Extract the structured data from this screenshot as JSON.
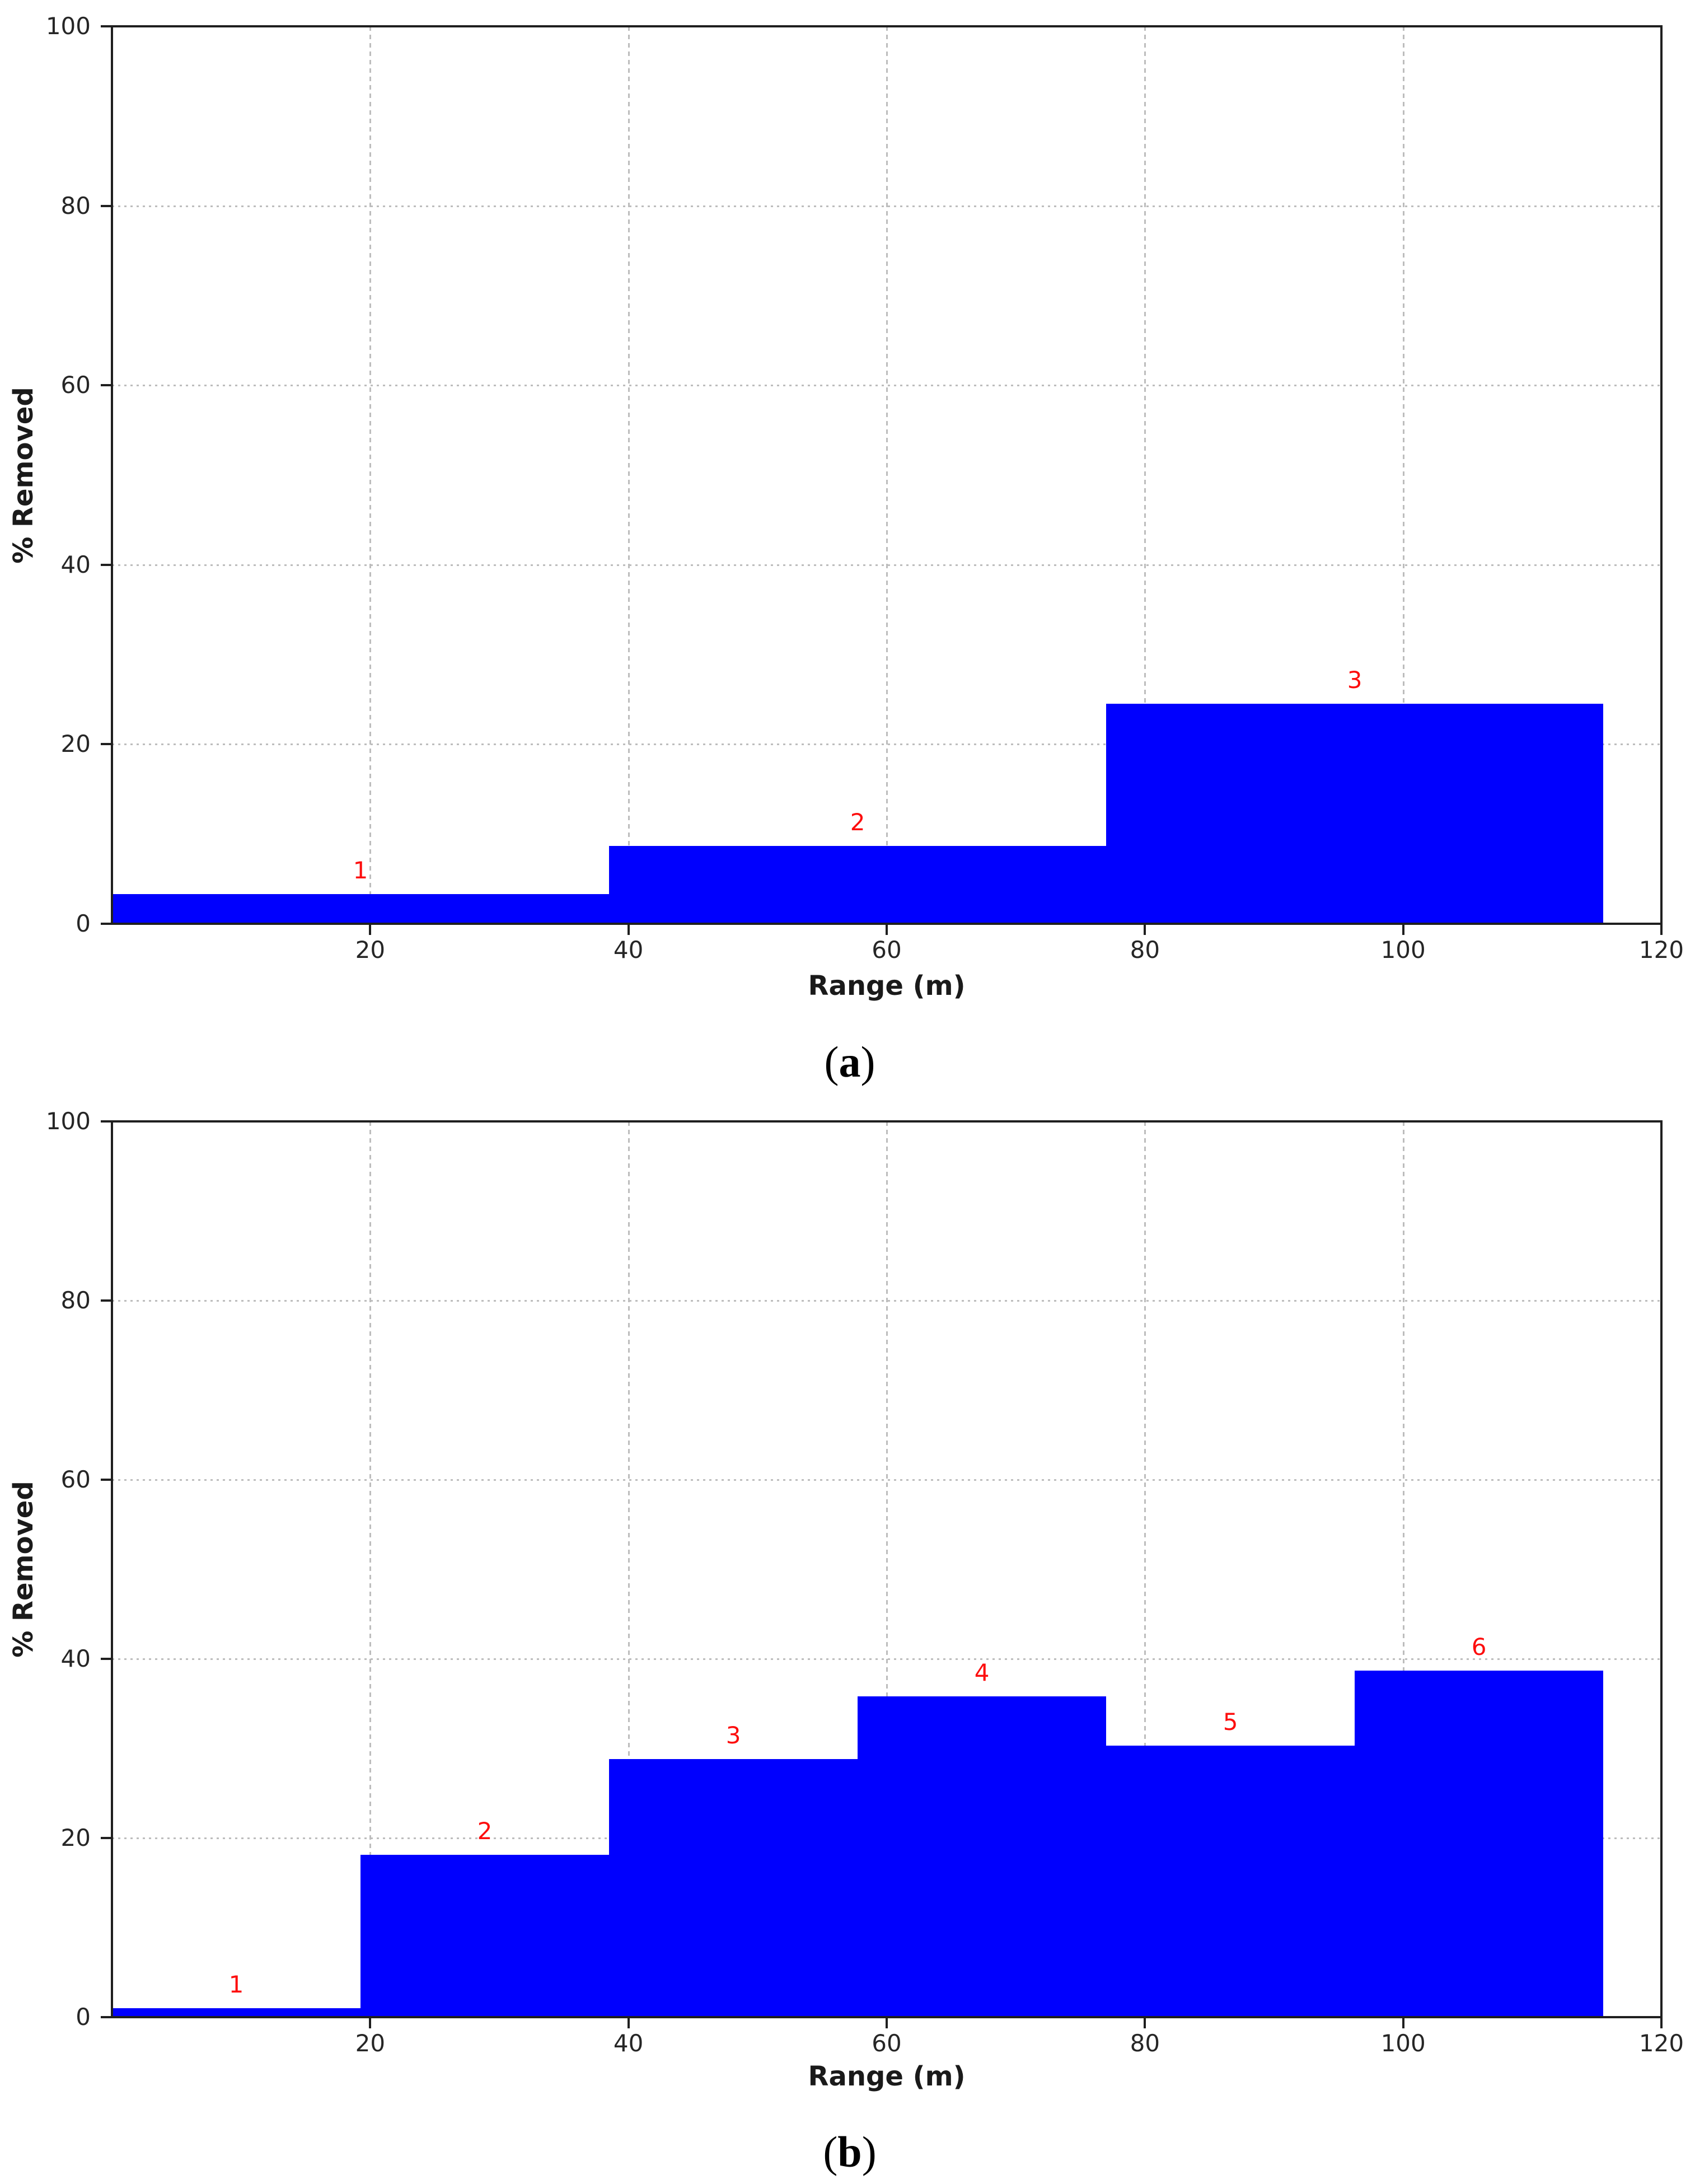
{
  "figure": {
    "background": "#ffffff",
    "axis_color": "#1f1f1f",
    "grid_color": "#bdbdbd",
    "tick_label_color": "#262626"
  },
  "chart_data": [
    {
      "type": "bar",
      "panel": "a",
      "caption": {
        "open": "(",
        "letter": "a",
        "close": ")"
      },
      "title": "",
      "xlabel": "Range (m)",
      "ylabel": "% Removed",
      "xlim": [
        0,
        120
      ],
      "ylim": [
        0,
        100
      ],
      "xticks": [
        20,
        40,
        60,
        80,
        100,
        120
      ],
      "yticks": [
        0,
        20,
        40,
        60,
        80,
        100
      ],
      "grid": "on",
      "legend": "none",
      "bar_color": "#0000fe",
      "annotation_color": "#fd0d0d",
      "bins": [
        {
          "label": "1",
          "x0": 0,
          "x1": 38.5,
          "value": 3.3
        },
        {
          "label": "2",
          "x0": 38.5,
          "x1": 77.0,
          "value": 8.7
        },
        {
          "label": "3",
          "x0": 77.0,
          "x1": 115.5,
          "value": 24.5
        }
      ]
    },
    {
      "type": "bar",
      "panel": "b",
      "caption": {
        "open": "(",
        "letter": "b",
        "close": ")"
      },
      "title": "",
      "xlabel": "Range (m)",
      "ylabel": "% Removed",
      "xlim": [
        0,
        120
      ],
      "ylim": [
        0,
        100
      ],
      "xticks": [
        20,
        40,
        60,
        80,
        100,
        120
      ],
      "yticks": [
        0,
        20,
        40,
        60,
        80,
        100
      ],
      "grid": "on",
      "legend": "none",
      "bar_color": "#0000fe",
      "annotation_color": "#fd0d0d",
      "bins": [
        {
          "label": "1",
          "x0": 0,
          "x1": 19.25,
          "value": 1.0
        },
        {
          "label": "2",
          "x0": 19.25,
          "x1": 38.5,
          "value": 18.1
        },
        {
          "label": "3",
          "x0": 38.5,
          "x1": 57.75,
          "value": 28.8
        },
        {
          "label": "4",
          "x0": 57.75,
          "x1": 77.0,
          "value": 35.8
        },
        {
          "label": "5",
          "x0": 77.0,
          "x1": 96.25,
          "value": 30.3
        },
        {
          "label": "6",
          "x0": 96.25,
          "x1": 115.5,
          "value": 38.7
        }
      ]
    }
  ]
}
